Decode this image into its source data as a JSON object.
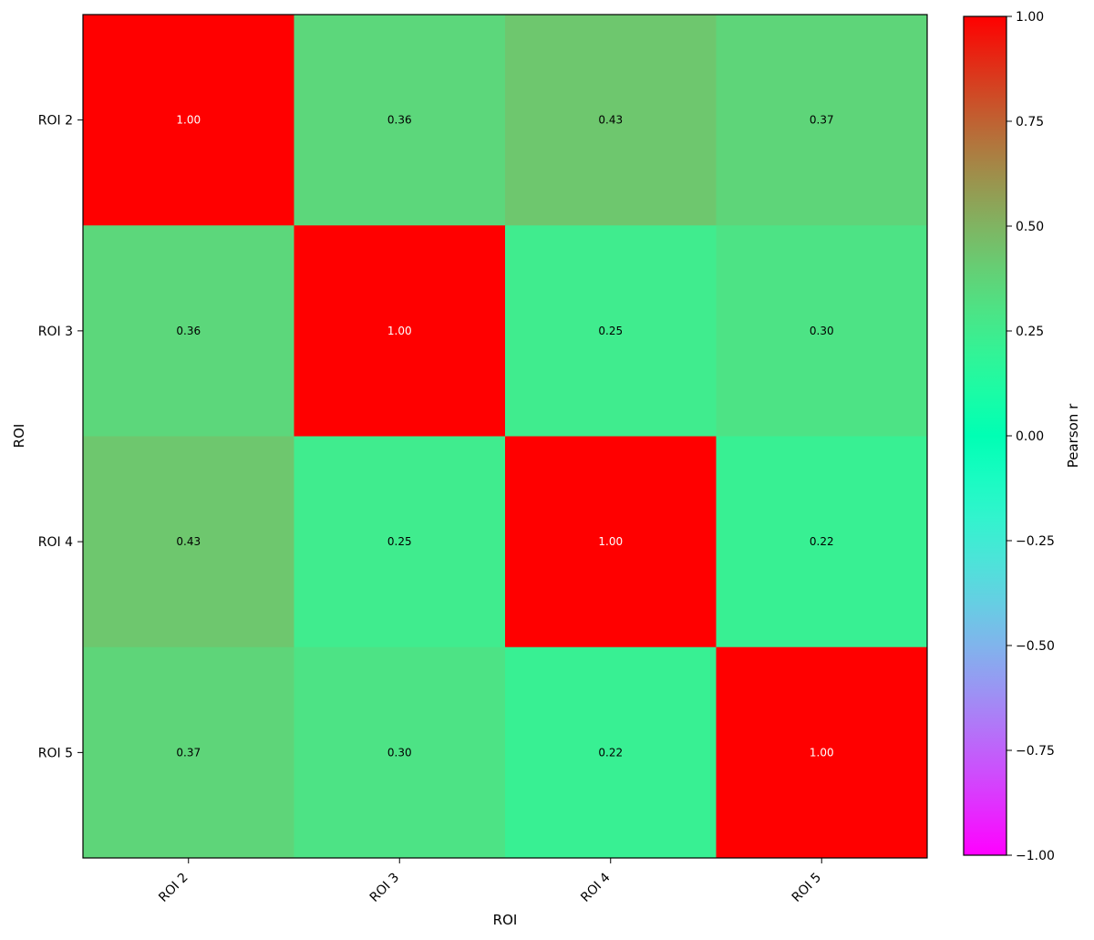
{
  "chart_data": {
    "type": "heatmap",
    "title": "",
    "xlabel": "ROI",
    "ylabel": "ROI",
    "x_categories": [
      "ROI 2",
      "ROI 3",
      "ROI 4",
      "ROI 5"
    ],
    "y_categories": [
      "ROI 2",
      "ROI 3",
      "ROI 4",
      "ROI 5"
    ],
    "values": [
      [
        1.0,
        0.36,
        0.43,
        0.37
      ],
      [
        0.36,
        1.0,
        0.25,
        0.3
      ],
      [
        0.43,
        0.25,
        1.0,
        0.22
      ],
      [
        0.37,
        0.3,
        0.22,
        1.0
      ]
    ],
    "cell_labels": [
      [
        "1.00",
        "0.36",
        "0.43",
        "0.37"
      ],
      [
        "0.36",
        "1.00",
        "0.25",
        "0.30"
      ],
      [
        "0.43",
        "0.25",
        "1.00",
        "0.22"
      ],
      [
        "0.37",
        "0.30",
        "0.22",
        "1.00"
      ]
    ],
    "colormap": "rainbow",
    "colorbar": {
      "label": "Pearson r",
      "range": [
        -1.0,
        1.0
      ],
      "ticks": [
        1.0,
        0.75,
        0.5,
        0.25,
        0.0,
        -0.25,
        -0.5,
        -0.75,
        -1.0
      ],
      "tick_labels": [
        "1.00",
        "0.75",
        "0.50",
        "0.25",
        "0.00",
        "−0.25",
        "−0.50",
        "−0.75",
        "−1.00"
      ]
    },
    "grid": false,
    "x_tick_rotation_deg": 45
  }
}
